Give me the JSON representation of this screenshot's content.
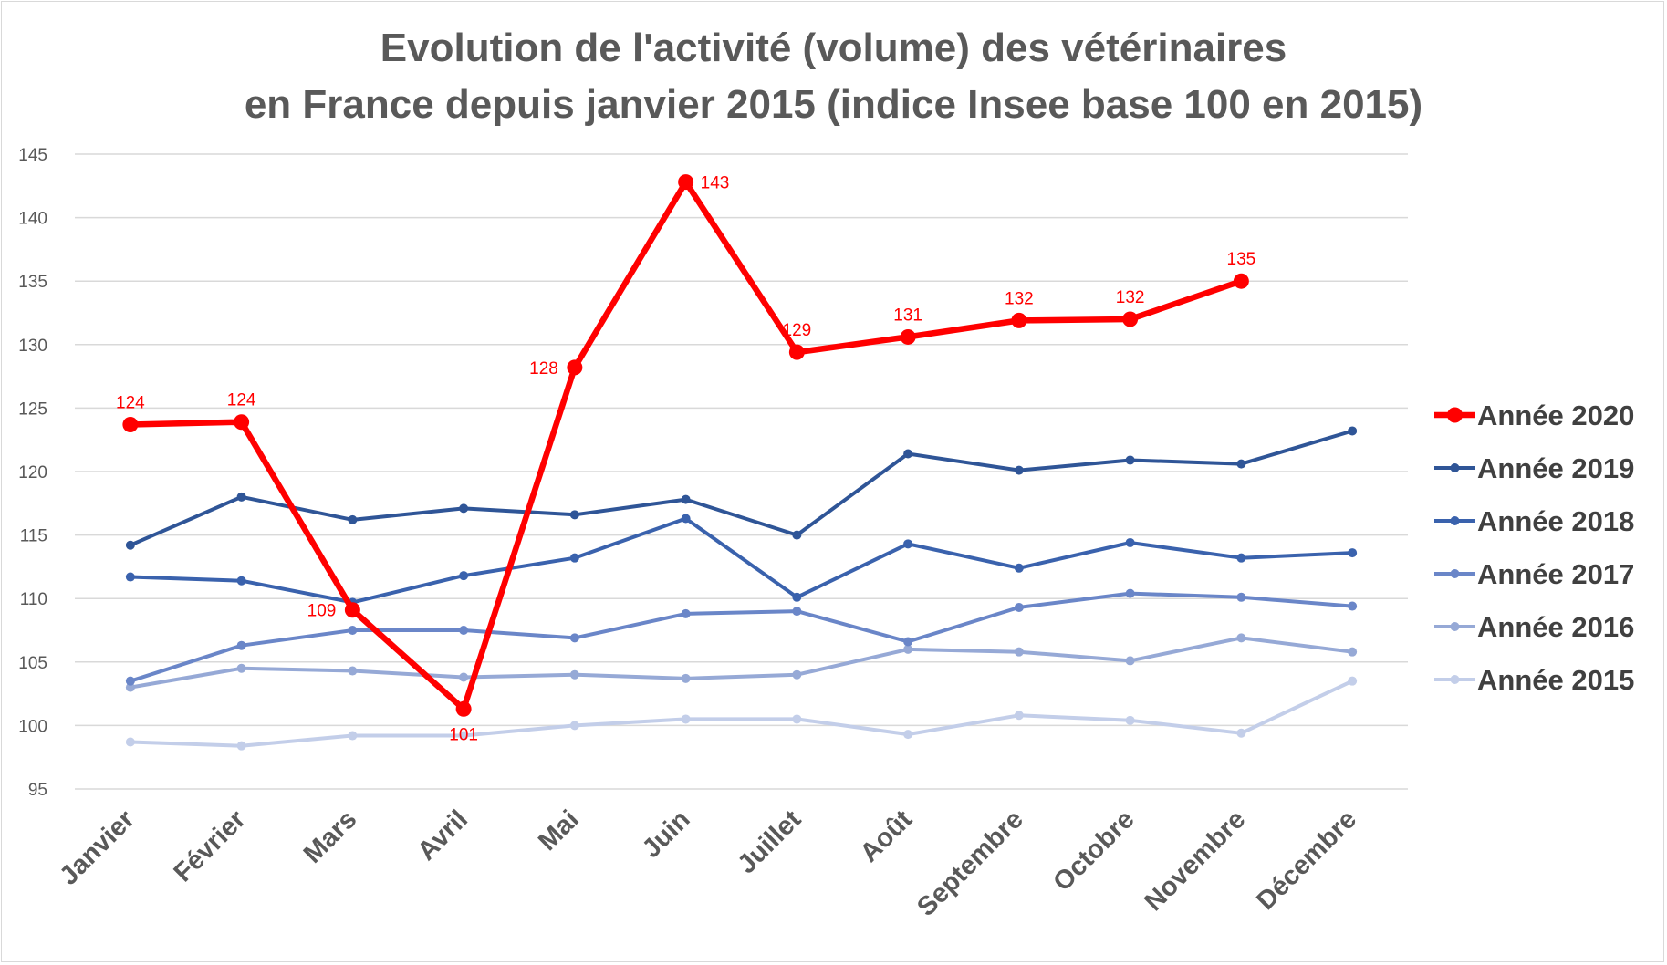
{
  "chart_data": {
    "type": "line",
    "title_lines": [
      "Evolution de l'activité (volume) des vétérinaires",
      "en France depuis janvier 2015 (indice Insee base 100 en 2015)"
    ],
    "categories": [
      "Janvier",
      "Février",
      "Mars",
      "Avril",
      "Mai",
      "Juin",
      "Juillet",
      "Août",
      "Septembre",
      "Octobre",
      "Novembre",
      "Décembre"
    ],
    "y_ticks": [
      95,
      100,
      105,
      110,
      115,
      120,
      125,
      130,
      135,
      140,
      145
    ],
    "ylim": [
      95,
      145
    ],
    "grid": true,
    "legend_position": "right",
    "series": [
      {
        "name": "Année 2020",
        "color": "#ff0000",
        "emphasis": true,
        "values": [
          123.7,
          123.9,
          109.1,
          101.3,
          128.2,
          142.8,
          129.4,
          130.6,
          131.9,
          132.0,
          135.0,
          null
        ],
        "data_labels": [
          "124",
          "124",
          "109",
          "101",
          "128",
          "143",
          "129",
          "131",
          "132",
          "132",
          "135",
          null
        ]
      },
      {
        "name": "Année 2019",
        "color": "#2f5597",
        "values": [
          114.2,
          118.0,
          116.2,
          117.1,
          116.6,
          117.8,
          115.0,
          121.4,
          120.1,
          120.9,
          120.6,
          123.2
        ]
      },
      {
        "name": "Année 2018",
        "color": "#3a62ad",
        "values": [
          111.7,
          111.4,
          109.7,
          111.8,
          113.2,
          116.3,
          110.1,
          114.3,
          112.4,
          114.4,
          113.2,
          113.6
        ]
      },
      {
        "name": "Année 2017",
        "color": "#6a86c8",
        "values": [
          103.5,
          106.3,
          107.5,
          107.5,
          106.9,
          108.8,
          109.0,
          106.6,
          109.3,
          110.4,
          110.1,
          109.4
        ]
      },
      {
        "name": "Année 2016",
        "color": "#96a9d6",
        "values": [
          103.0,
          104.5,
          104.3,
          103.8,
          104.0,
          103.7,
          104.0,
          106.0,
          105.8,
          105.1,
          106.9,
          105.8
        ]
      },
      {
        "name": "Année 2015",
        "color": "#c3cee9",
        "values": [
          98.7,
          98.4,
          99.2,
          99.2,
          100.0,
          100.5,
          100.5,
          99.3,
          100.8,
          100.4,
          99.4,
          103.5
        ]
      }
    ]
  }
}
